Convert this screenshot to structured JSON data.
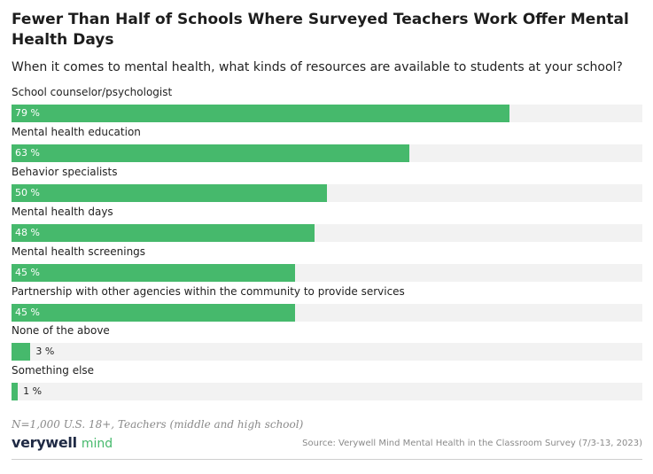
{
  "chart_data": {
    "type": "bar",
    "orientation": "horizontal",
    "title": "Fewer Than Half of Schools Where Surveyed Teachers Work Offer Mental Health Days",
    "subtitle": "When it comes to mental health, what kinds of resources are available to students at your school?",
    "categories": [
      "School counselor/psychologist",
      "Mental health education",
      "Behavior specialists",
      "Mental health days",
      "Mental health screenings",
      "Partnership with other agencies within the community to provide services",
      "None of the above",
      "Something else"
    ],
    "values": [
      79,
      63,
      50,
      48,
      45,
      45,
      3,
      1
    ],
    "value_labels": [
      "79 %",
      "63 %",
      "50 %",
      "48 %",
      "45 %",
      "45 %",
      "3 %",
      "1 %"
    ],
    "xlim": [
      0,
      100
    ],
    "grid": false,
    "bar_color": "#46b96c",
    "track_color": "#f2f2f2"
  },
  "footer": {
    "note": "N=1,000 U.S. 18+, Teachers (middle and high school)",
    "logo_part1": "verywell",
    "logo_part2": "mind",
    "source": "Source: Verywell Mind Mental Health in the Classroom Survey (7/3-13, 2023)"
  }
}
